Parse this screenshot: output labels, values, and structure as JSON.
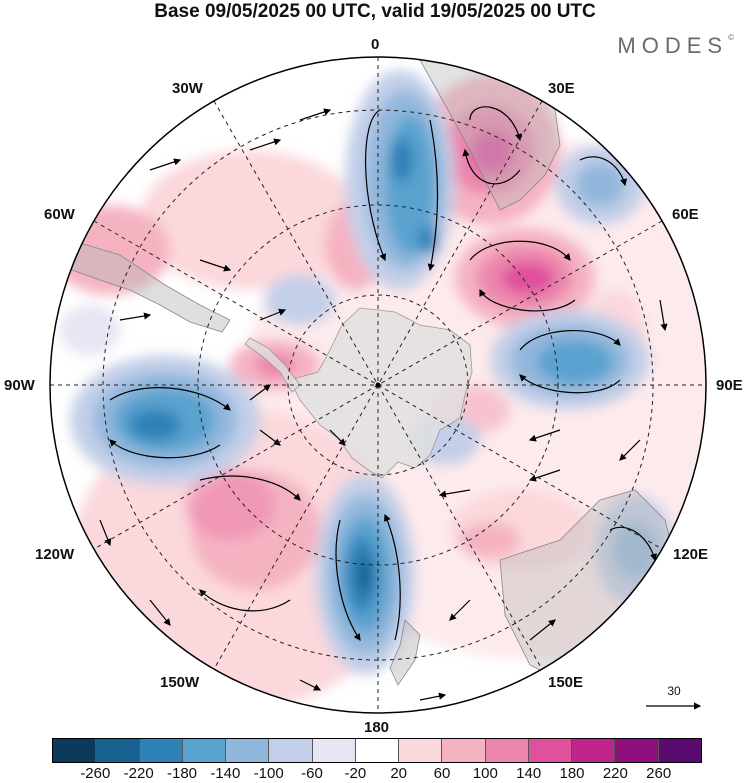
{
  "title": "Base 09/05/2025 00 UTC, valid 19/05/2025 00 UTC",
  "brand": "MODES",
  "brand_mark": "©",
  "longitudes": {
    "lon_0": "0",
    "lon_30e": "30E",
    "lon_60e": "60E",
    "lon_90e": "90E",
    "lon_120e": "120E",
    "lon_150e": "150E",
    "lon_180": "180",
    "lon_150w": "150W",
    "lon_120w": "120W",
    "lon_90w": "90W",
    "lon_60w": "60W",
    "lon_30w": "30W"
  },
  "reference_vector": "30",
  "colorbar": {
    "colors": [
      "#0b3a5a",
      "#17608f",
      "#2f82b8",
      "#5aa2cf",
      "#92b7dc",
      "#c3cfe8",
      "#e6e5f3",
      "#ffffff",
      "#fbd8dc",
      "#f5b3c2",
      "#ec86ad",
      "#df509d",
      "#c0238b",
      "#8f0f7f",
      "#5a0b6f"
    ],
    "ticks": [
      "-260",
      "-220",
      "-180",
      "-140",
      "-100",
      "-60",
      "-20",
      "20",
      "60",
      "100",
      "140",
      "180",
      "220",
      "260"
    ]
  },
  "colors": {
    "land": "#b8b8b8",
    "antarctica": "#e0e0e0"
  }
}
